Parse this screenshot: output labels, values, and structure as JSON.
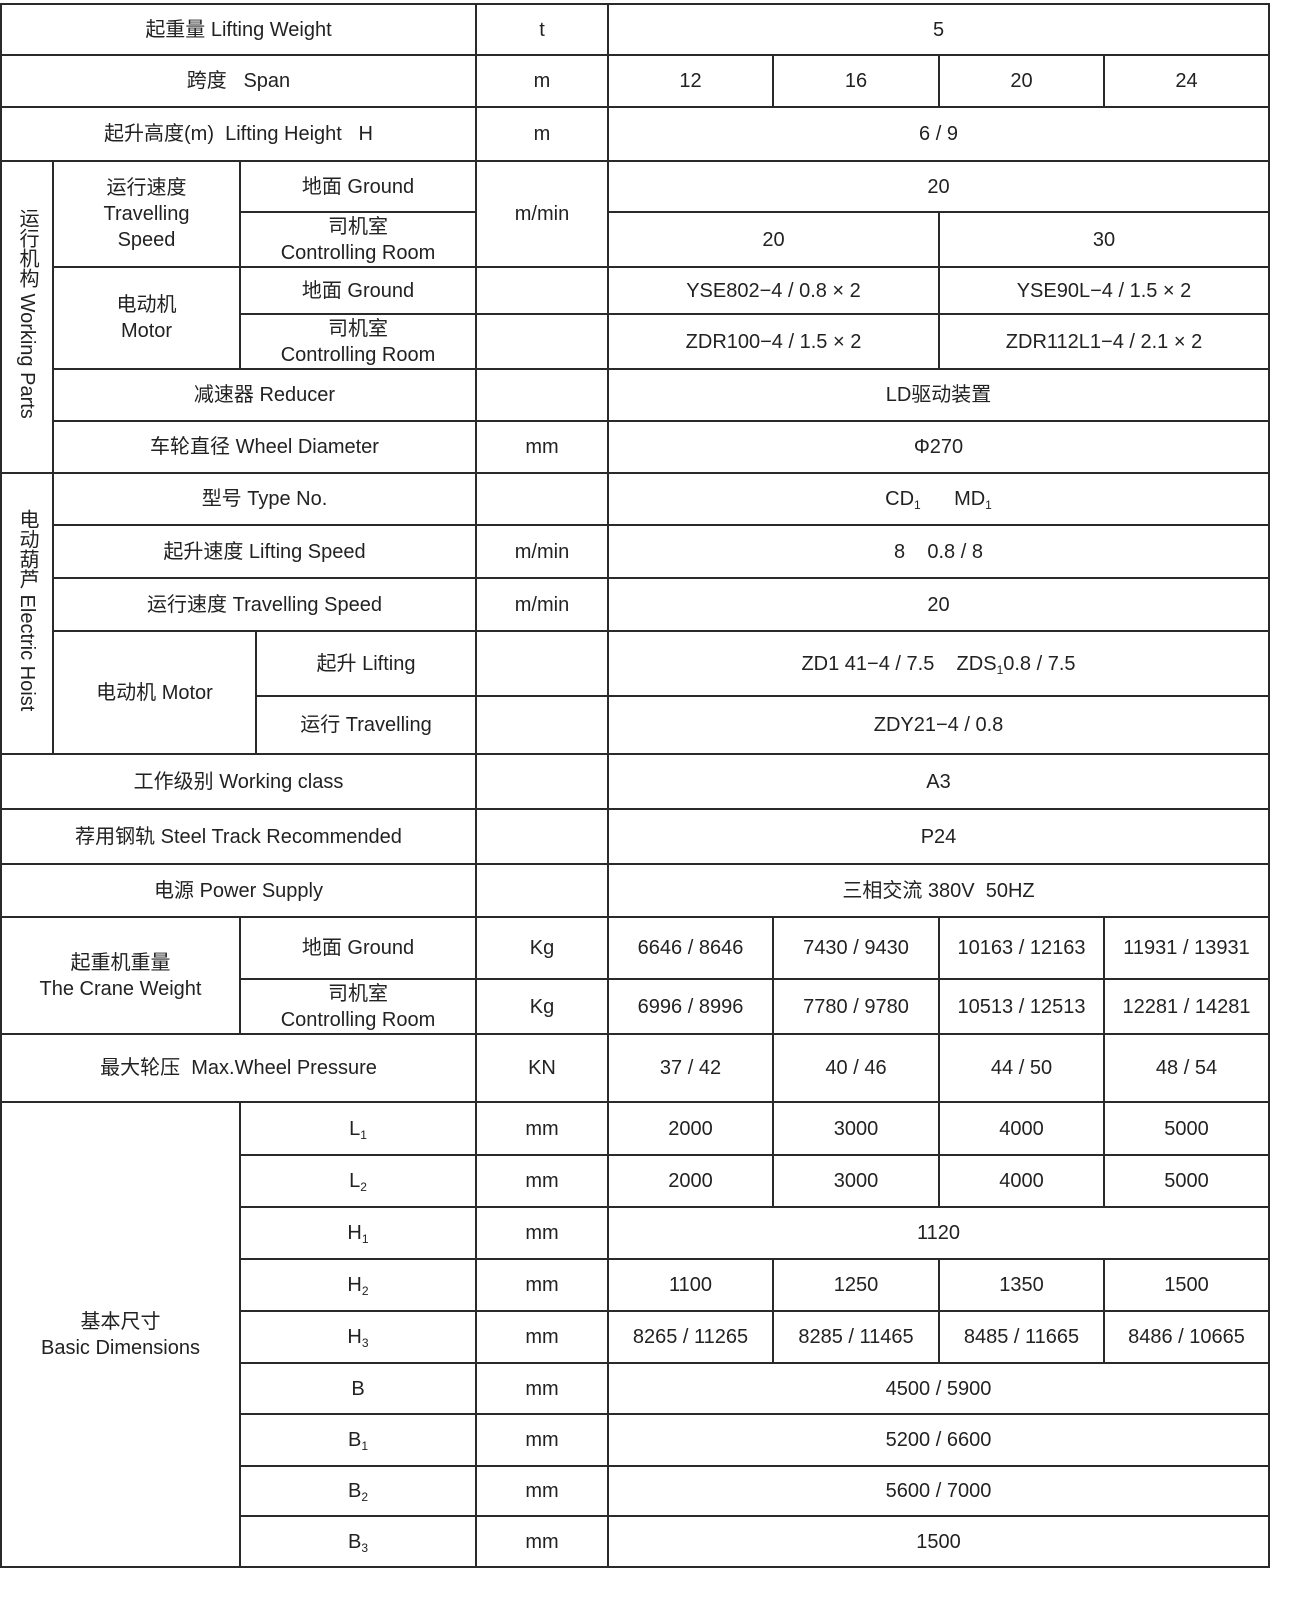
{
  "rows": {
    "lifting_weight": {
      "label": "起重量  Lifting Weight",
      "unit": "t",
      "value": "5"
    },
    "span": {
      "label": "跨度   Span",
      "unit": "m",
      "values": [
        "12",
        "16",
        "20",
        "24"
      ]
    },
    "lifting_height": {
      "label": "起升高度(m)  Lifting Height   H",
      "unit": "m",
      "value": "6 / 9"
    }
  },
  "working_parts": {
    "group_label": "运行机构 Working Parts",
    "travelling_speed": {
      "label_cn": "运行速度",
      "label_en1": "Travelling",
      "label_en2": "Speed",
      "unit": "m/min",
      "ground": {
        "label": "地面 Ground",
        "value": "20"
      },
      "room": {
        "label_cn": "司机室",
        "label_en": "Controlling Room",
        "values": [
          "20",
          "30"
        ]
      }
    },
    "motor": {
      "label_cn": "电动机",
      "label_en": "Motor",
      "ground": {
        "label": "地面 Ground",
        "values": [
          "YSE802−4 / 0.8 × 2",
          "YSE90L−4 / 1.5 × 2"
        ]
      },
      "room": {
        "label_cn": "司机室",
        "label_en": "Controlling Room",
        "values": [
          "ZDR100−4 / 1.5 × 2",
          "ZDR112L1−4 / 2.1 × 2"
        ]
      }
    },
    "reducer": {
      "label": "减速器 Reducer",
      "value": "LD驱动装置"
    },
    "wheel_diameter": {
      "label": "车轮直径 Wheel Diameter",
      "unit": "mm",
      "value": "Φ270"
    }
  },
  "electric_hoist": {
    "group_label": "电动葫芦 Electric Hoist",
    "type_no": {
      "label": "型号 Type No.",
      "v1": "CD",
      "v1_sub": "1",
      "v2": "MD",
      "v2_sub": "1"
    },
    "lifting_speed": {
      "label": "起升速度 Lifting Speed",
      "unit": "m/min",
      "value": "8    0.8 / 8"
    },
    "travelling_speed": {
      "label": "运行速度 Travelling Speed",
      "unit": "m/min",
      "value": "20"
    },
    "motor": {
      "label": "电动机 Motor",
      "lifting": {
        "label": "起升 Lifting",
        "value_a": "ZD1 41−4 / 7.5    ZDS",
        "value_sub": "1",
        "value_b": "0.8 / 7.5"
      },
      "travelling": {
        "label": "运行 Travelling",
        "value": "ZDY21−4 / 0.8"
      }
    }
  },
  "working_class": {
    "label": "工作级别 Working class",
    "value": "A3"
  },
  "steel_track": {
    "label": "荐用钢轨 Steel Track Recommended",
    "value": "P24"
  },
  "power_supply": {
    "label": "电源 Power Supply",
    "value": "三相交流 380V  50HZ"
  },
  "crane_weight": {
    "label_cn": "起重机重量",
    "label_en": "The Crane Weight",
    "ground": {
      "label": "地面 Ground",
      "unit": "Kg",
      "values": [
        "6646 / 8646",
        "7430 / 9430",
        "10163 / 12163",
        "11931 / 13931"
      ]
    },
    "room": {
      "label_cn": "司机室",
      "label_en": "Controlling Room",
      "unit": "Kg",
      "values": [
        "6996 / 8996",
        "7780 / 9780",
        "10513 / 12513",
        "12281 / 14281"
      ]
    }
  },
  "wheel_pressure": {
    "label": "最大轮压  Max.Wheel Pressure",
    "unit": "KN",
    "values": [
      "37 / 42",
      "40 / 46",
      "44 / 50",
      "48 / 54"
    ]
  },
  "basic_dimensions": {
    "label_cn": "基本尺寸",
    "label_en": "Basic Dimensions",
    "rows": [
      {
        "name": "L",
        "sub": "1",
        "unit": "mm",
        "values": [
          "2000",
          "3000",
          "4000",
          "5000"
        ]
      },
      {
        "name": "L",
        "sub": "2",
        "unit": "mm",
        "values": [
          "2000",
          "3000",
          "4000",
          "5000"
        ]
      },
      {
        "name": "H",
        "sub": "1",
        "unit": "mm",
        "value": "1120"
      },
      {
        "name": "H",
        "sub": "2",
        "unit": "mm",
        "values": [
          "1100",
          "1250",
          "1350",
          "1500"
        ]
      },
      {
        "name": "H",
        "sub": "3",
        "unit": "mm",
        "values": [
          "8265 / 11265",
          "8285 / 11465",
          "8485 / 11665",
          "8486 / 10665"
        ]
      },
      {
        "name": "B",
        "sub": "",
        "unit": "mm",
        "value": "4500 / 5900"
      },
      {
        "name": "B",
        "sub": "1",
        "unit": "mm",
        "value": "5200 / 6600"
      },
      {
        "name": "B",
        "sub": "2",
        "unit": "mm",
        "value": "5600 / 7000"
      },
      {
        "name": "B",
        "sub": "3",
        "unit": "mm",
        "value": "1500"
      }
    ]
  }
}
